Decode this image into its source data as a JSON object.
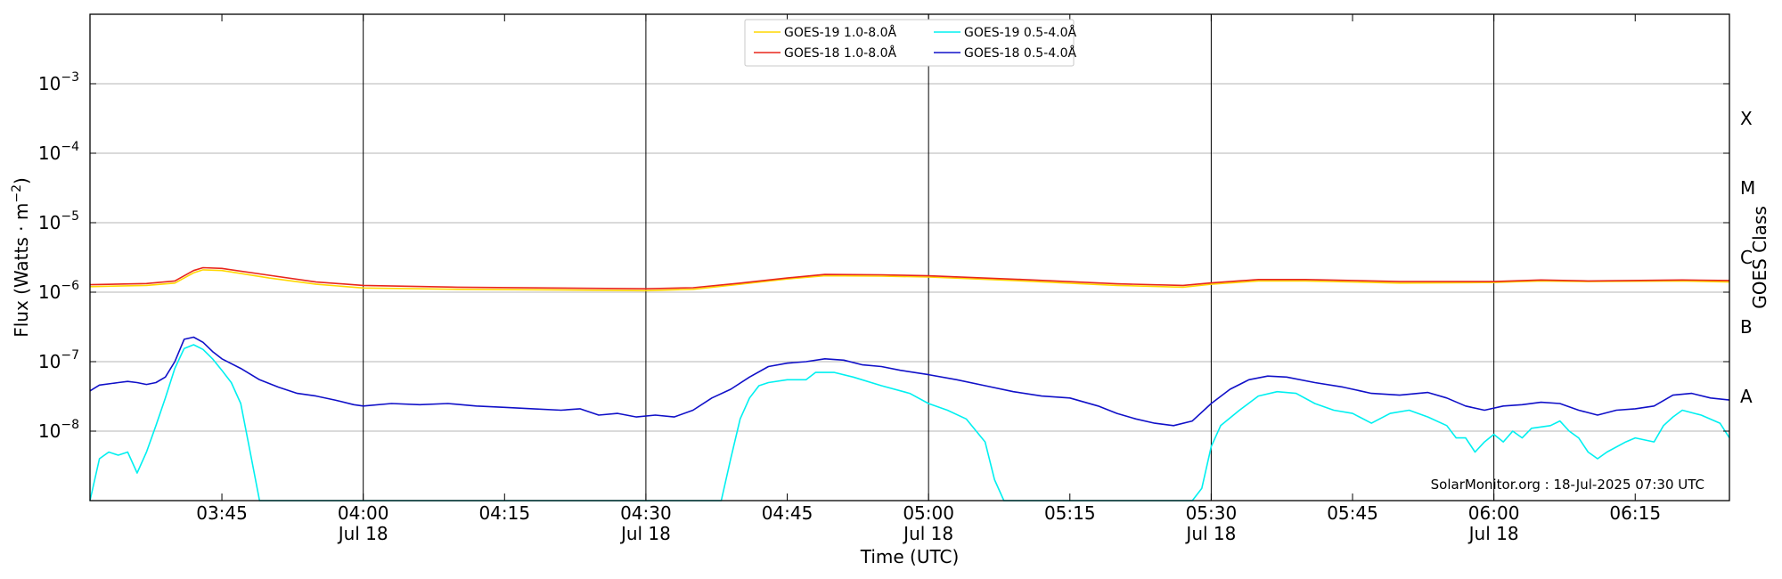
{
  "chart_data": {
    "type": "line",
    "xlabel": "Time (UTC)",
    "ylabel_main": "Flux (Watts · m",
    "ylabel_exp": "−2",
    "ylabel_close": ")",
    "right_label": "GOES Class",
    "credit": "SolarMonitor.org : 18-Jul-2025 07:30 UTC",
    "y_scale": "log",
    "ylim": [
      1e-09,
      0.01
    ],
    "xlim_minutes": [
      "03:31",
      "06:25"
    ],
    "grid": "horizontal at decades",
    "legend_position": "top-center",
    "y_ticks": [
      {
        "value": 1e-08,
        "base": "10",
        "exp": "−8"
      },
      {
        "value": 1e-07,
        "base": "10",
        "exp": "−7"
      },
      {
        "value": 1e-06,
        "base": "10",
        "exp": "−6"
      },
      {
        "value": 1e-05,
        "base": "10",
        "exp": "−5"
      },
      {
        "value": 0.0001,
        "base": "10",
        "exp": "−4"
      },
      {
        "value": 0.001,
        "base": "10",
        "exp": "−3"
      }
    ],
    "x_ticks": [
      {
        "time": "03:45",
        "label": "03:45",
        "sub": ""
      },
      {
        "time": "04:00",
        "label": "04:00",
        "sub": "Jul 18"
      },
      {
        "time": "04:15",
        "label": "04:15",
        "sub": ""
      },
      {
        "time": "04:30",
        "label": "04:30",
        "sub": "Jul 18"
      },
      {
        "time": "04:45",
        "label": "04:45",
        "sub": ""
      },
      {
        "time": "05:00",
        "label": "05:00",
        "sub": "Jul 18"
      },
      {
        "time": "05:15",
        "label": "05:15",
        "sub": ""
      },
      {
        "time": "05:30",
        "label": "05:30",
        "sub": "Jul 18"
      },
      {
        "time": "05:45",
        "label": "05:45",
        "sub": ""
      },
      {
        "time": "06:00",
        "label": "06:00",
        "sub": "Jul 18"
      },
      {
        "time": "06:15",
        "label": "06:15",
        "sub": ""
      }
    ],
    "vertical_lines": [
      "04:00",
      "04:30",
      "05:00",
      "05:30",
      "06:00"
    ],
    "goes_classes": [
      {
        "label": "A",
        "value": 3.16e-08
      },
      {
        "label": "B",
        "value": 3.16e-07
      },
      {
        "label": "C",
        "value": 3.16e-06
      },
      {
        "label": "M",
        "value": 3.16e-05
      },
      {
        "label": "X",
        "value": 0.000316
      }
    ],
    "series": [
      {
        "name": "GOES-19 1.0-8.0Å",
        "color": "#ffd700",
        "points": [
          [
            "03:31",
            1.2e-06
          ],
          [
            "03:37",
            1.25e-06
          ],
          [
            "03:40",
            1.35e-06
          ],
          [
            "03:42",
            1.9e-06
          ],
          [
            "03:43",
            2.1e-06
          ],
          [
            "03:45",
            2.05e-06
          ],
          [
            "03:50",
            1.6e-06
          ],
          [
            "03:55",
            1.3e-06
          ],
          [
            "04:00",
            1.15e-06
          ],
          [
            "04:10",
            1.1e-06
          ],
          [
            "04:20",
            1.08e-06
          ],
          [
            "04:30",
            1.05e-06
          ],
          [
            "04:35",
            1.1e-06
          ],
          [
            "04:40",
            1.3e-06
          ],
          [
            "04:45",
            1.55e-06
          ],
          [
            "04:49",
            1.72e-06
          ],
          [
            "04:55",
            1.7e-06
          ],
          [
            "05:00",
            1.65e-06
          ],
          [
            "05:10",
            1.45e-06
          ],
          [
            "05:20",
            1.25e-06
          ],
          [
            "05:27",
            1.18e-06
          ],
          [
            "05:30",
            1.3e-06
          ],
          [
            "05:35",
            1.45e-06
          ],
          [
            "05:40",
            1.45e-06
          ],
          [
            "05:50",
            1.35e-06
          ],
          [
            "06:00",
            1.38e-06
          ],
          [
            "06:05",
            1.45e-06
          ],
          [
            "06:10",
            1.42e-06
          ],
          [
            "06:20",
            1.45e-06
          ],
          [
            "06:25",
            1.4e-06
          ]
        ]
      },
      {
        "name": "GOES-18 1.0-8.0Å",
        "color": "#e8261c",
        "points": [
          [
            "03:31",
            1.28e-06
          ],
          [
            "03:37",
            1.33e-06
          ],
          [
            "03:40",
            1.45e-06
          ],
          [
            "03:42",
            2.05e-06
          ],
          [
            "03:43",
            2.25e-06
          ],
          [
            "03:45",
            2.2e-06
          ],
          [
            "03:50",
            1.75e-06
          ],
          [
            "03:55",
            1.4e-06
          ],
          [
            "04:00",
            1.25e-06
          ],
          [
            "04:10",
            1.18e-06
          ],
          [
            "04:20",
            1.15e-06
          ],
          [
            "04:30",
            1.12e-06
          ],
          [
            "04:35",
            1.16e-06
          ],
          [
            "04:40",
            1.35e-06
          ],
          [
            "04:45",
            1.6e-06
          ],
          [
            "04:49",
            1.8e-06
          ],
          [
            "04:55",
            1.78e-06
          ],
          [
            "05:00",
            1.72e-06
          ],
          [
            "05:10",
            1.52e-06
          ],
          [
            "05:20",
            1.32e-06
          ],
          [
            "05:27",
            1.25e-06
          ],
          [
            "05:30",
            1.36e-06
          ],
          [
            "05:35",
            1.52e-06
          ],
          [
            "05:40",
            1.52e-06
          ],
          [
            "05:50",
            1.42e-06
          ],
          [
            "06:00",
            1.42e-06
          ],
          [
            "06:05",
            1.5e-06
          ],
          [
            "06:10",
            1.45e-06
          ],
          [
            "06:20",
            1.5e-06
          ],
          [
            "06:25",
            1.47e-06
          ]
        ]
      },
      {
        "name": "GOES-19 0.5-4.0Å",
        "color": "#00f0f0",
        "points": [
          [
            "03:31",
            1e-09
          ],
          [
            "03:32",
            4e-09
          ],
          [
            "03:33",
            5e-09
          ],
          [
            "03:34",
            4.5e-09
          ],
          [
            "03:35",
            5e-09
          ],
          [
            "03:36",
            2.5e-09
          ],
          [
            "03:37",
            5e-09
          ],
          [
            "03:38",
            1.2e-08
          ],
          [
            "03:39",
            3e-08
          ],
          [
            "03:40",
            8e-08
          ],
          [
            "03:41",
            1.55e-07
          ],
          [
            "03:42",
            1.75e-07
          ],
          [
            "03:43",
            1.5e-07
          ],
          [
            "03:44",
            1.1e-07
          ],
          [
            "03:45",
            7.5e-08
          ],
          [
            "03:46",
            5e-08
          ],
          [
            "03:47",
            2.5e-08
          ],
          [
            "03:48",
            5e-09
          ],
          [
            "03:49",
            1e-09
          ],
          [
            "04:38",
            1e-09
          ],
          [
            "04:39",
            4e-09
          ],
          [
            "04:40",
            1.5e-08
          ],
          [
            "04:41",
            3e-08
          ],
          [
            "04:42",
            4.5e-08
          ],
          [
            "04:43",
            5e-08
          ],
          [
            "04:45",
            5.5e-08
          ],
          [
            "04:47",
            5.5e-08
          ],
          [
            "04:48",
            7e-08
          ],
          [
            "04:50",
            7e-08
          ],
          [
            "04:52",
            6e-08
          ],
          [
            "04:55",
            4.5e-08
          ],
          [
            "04:58",
            3.5e-08
          ],
          [
            "05:00",
            2.5e-08
          ],
          [
            "05:02",
            2e-08
          ],
          [
            "05:04",
            1.5e-08
          ],
          [
            "05:06",
            7e-09
          ],
          [
            "05:07",
            2e-09
          ],
          [
            "05:08",
            1e-09
          ],
          [
            "05:28",
            1e-09
          ],
          [
            "05:29",
            1.5e-09
          ],
          [
            "05:30",
            6e-09
          ],
          [
            "05:31",
            1.2e-08
          ],
          [
            "05:33",
            2e-08
          ],
          [
            "05:35",
            3.2e-08
          ],
          [
            "05:37",
            3.7e-08
          ],
          [
            "05:39",
            3.5e-08
          ],
          [
            "05:41",
            2.5e-08
          ],
          [
            "05:43",
            2e-08
          ],
          [
            "05:45",
            1.8e-08
          ],
          [
            "05:47",
            1.3e-08
          ],
          [
            "05:49",
            1.8e-08
          ],
          [
            "05:51",
            2e-08
          ],
          [
            "05:53",
            1.6e-08
          ],
          [
            "05:55",
            1.2e-08
          ],
          [
            "05:56",
            8e-09
          ],
          [
            "05:57",
            8e-09
          ],
          [
            "05:58",
            5e-09
          ],
          [
            "05:59",
            7e-09
          ],
          [
            "06:00",
            9e-09
          ],
          [
            "06:01",
            7e-09
          ],
          [
            "06:02",
            1e-08
          ],
          [
            "06:03",
            8e-09
          ],
          [
            "06:04",
            1.1e-08
          ],
          [
            "06:06",
            1.2e-08
          ],
          [
            "06:07",
            1.4e-08
          ],
          [
            "06:08",
            1e-08
          ],
          [
            "06:09",
            8e-09
          ],
          [
            "06:10",
            5e-09
          ],
          [
            "06:11",
            4e-09
          ],
          [
            "06:12",
            5e-09
          ],
          [
            "06:14",
            7e-09
          ],
          [
            "06:15",
            8e-09
          ],
          [
            "06:17",
            7e-09
          ],
          [
            "06:18",
            1.2e-08
          ],
          [
            "06:19",
            1.6e-08
          ],
          [
            "06:20",
            2e-08
          ],
          [
            "06:22",
            1.7e-08
          ],
          [
            "06:24",
            1.3e-08
          ],
          [
            "06:25",
            8e-09
          ]
        ]
      },
      {
        "name": "GOES-18 0.5-4.0Å",
        "color": "#1010c8",
        "points": [
          [
            "03:31",
            3.8e-08
          ],
          [
            "03:32",
            4.6e-08
          ],
          [
            "03:34",
            5e-08
          ],
          [
            "03:35",
            5.2e-08
          ],
          [
            "03:36",
            5e-08
          ],
          [
            "03:37",
            4.7e-08
          ],
          [
            "03:38",
            5e-08
          ],
          [
            "03:39",
            6e-08
          ],
          [
            "03:40",
            1e-07
          ],
          [
            "03:41",
            2.1e-07
          ],
          [
            "03:42",
            2.25e-07
          ],
          [
            "03:43",
            1.9e-07
          ],
          [
            "03:44",
            1.4e-07
          ],
          [
            "03:45",
            1.1e-07
          ],
          [
            "03:47",
            8e-08
          ],
          [
            "03:49",
            5.5e-08
          ],
          [
            "03:51",
            4.3e-08
          ],
          [
            "03:53",
            3.5e-08
          ],
          [
            "03:55",
            3.2e-08
          ],
          [
            "03:57",
            2.8e-08
          ],
          [
            "03:59",
            2.4e-08
          ],
          [
            "04:00",
            2.3e-08
          ],
          [
            "04:03",
            2.5e-08
          ],
          [
            "04:06",
            2.4e-08
          ],
          [
            "04:09",
            2.5e-08
          ],
          [
            "04:12",
            2.3e-08
          ],
          [
            "04:15",
            2.2e-08
          ],
          [
            "04:18",
            2.1e-08
          ],
          [
            "04:21",
            2e-08
          ],
          [
            "04:23",
            2.1e-08
          ],
          [
            "04:25",
            1.7e-08
          ],
          [
            "04:27",
            1.8e-08
          ],
          [
            "04:29",
            1.6e-08
          ],
          [
            "04:31",
            1.7e-08
          ],
          [
            "04:33",
            1.6e-08
          ],
          [
            "04:35",
            2e-08
          ],
          [
            "04:37",
            3e-08
          ],
          [
            "04:39",
            4e-08
          ],
          [
            "04:41",
            6e-08
          ],
          [
            "04:43",
            8.5e-08
          ],
          [
            "04:45",
            9.5e-08
          ],
          [
            "04:47",
            1e-07
          ],
          [
            "04:49",
            1.1e-07
          ],
          [
            "04:51",
            1.05e-07
          ],
          [
            "04:53",
            9e-08
          ],
          [
            "04:55",
            8.5e-08
          ],
          [
            "04:57",
            7.5e-08
          ],
          [
            "05:00",
            6.5e-08
          ],
          [
            "05:03",
            5.5e-08
          ],
          [
            "05:06",
            4.5e-08
          ],
          [
            "05:09",
            3.7e-08
          ],
          [
            "05:12",
            3.2e-08
          ],
          [
            "05:15",
            3e-08
          ],
          [
            "05:18",
            2.3e-08
          ],
          [
            "05:20",
            1.8e-08
          ],
          [
            "05:22",
            1.5e-08
          ],
          [
            "05:24",
            1.3e-08
          ],
          [
            "05:26",
            1.2e-08
          ],
          [
            "05:28",
            1.4e-08
          ],
          [
            "05:30",
            2.5e-08
          ],
          [
            "05:32",
            4e-08
          ],
          [
            "05:34",
            5.5e-08
          ],
          [
            "05:36",
            6.2e-08
          ],
          [
            "05:38",
            6e-08
          ],
          [
            "05:41",
            5e-08
          ],
          [
            "05:44",
            4.3e-08
          ],
          [
            "05:47",
            3.5e-08
          ],
          [
            "05:50",
            3.3e-08
          ],
          [
            "05:53",
            3.6e-08
          ],
          [
            "05:55",
            3e-08
          ],
          [
            "05:57",
            2.3e-08
          ],
          [
            "05:59",
            2e-08
          ],
          [
            "06:01",
            2.3e-08
          ],
          [
            "06:03",
            2.4e-08
          ],
          [
            "06:05",
            2.6e-08
          ],
          [
            "06:07",
            2.5e-08
          ],
          [
            "06:09",
            2e-08
          ],
          [
            "06:11",
            1.7e-08
          ],
          [
            "06:13",
            2e-08
          ],
          [
            "06:15",
            2.1e-08
          ],
          [
            "06:17",
            2.3e-08
          ],
          [
            "06:19",
            3.3e-08
          ],
          [
            "06:21",
            3.5e-08
          ],
          [
            "06:23",
            3e-08
          ],
          [
            "06:25",
            2.8e-08
          ]
        ]
      }
    ]
  }
}
